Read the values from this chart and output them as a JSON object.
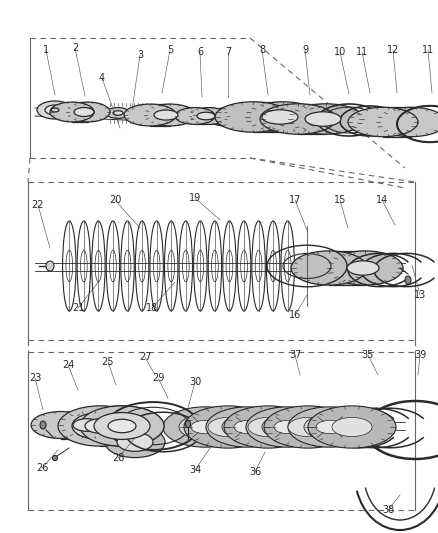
{
  "bg_color": "#ffffff",
  "fig_width": 4.38,
  "fig_height": 5.33,
  "dpi": 100,
  "line_color": "#2a2a2a",
  "label_color": "#2a2a2a",
  "label_fontsize": 7.0,
  "leader_color": "#555555",
  "box_color": "#777777",
  "part_fill": "#d0d0d0",
  "part_fill_dark": "#a0a0a0",
  "part_fill_light": "#e8e8e8",
  "tooth_fill": "#c0c0c0"
}
